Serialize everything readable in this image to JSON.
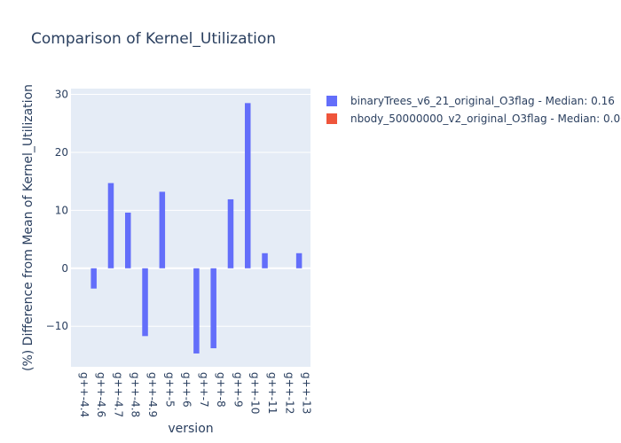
{
  "chart_data": {
    "type": "bar",
    "title": "Comparison of Kernel_Utilization",
    "xlabel": "version",
    "ylabel": "(%) Difference from Mean of Kernel_Utilization",
    "categories": [
      "g++-4.4",
      "g++-4.6",
      "g++-4.7",
      "g++-4.8",
      "g++-4.9",
      "g++-5",
      "g++-6",
      "g++-7",
      "g++-8",
      "g++-9",
      "g++-10",
      "g++-11",
      "g++-12",
      "g++-13"
    ],
    "ylim": [
      -17,
      31
    ],
    "yticks": [
      -10,
      0,
      10,
      20,
      30
    ],
    "grid": true,
    "legend_position": "top-right outside",
    "series": [
      {
        "name": "binaryTrees_v6_21_original_O3flag - Median: 0.16",
        "color": "#636efa",
        "values": [
          0,
          -3.5,
          14.7,
          9.6,
          -11.7,
          13.2,
          0,
          -14.7,
          -13.8,
          11.9,
          28.5,
          2.6,
          0,
          2.6
        ]
      },
      {
        "name": "nbody_50000000_v2_original_O3flag - Median: 0.00",
        "color": "#ef553b",
        "values": [
          0,
          0,
          0,
          0,
          0,
          0,
          0,
          0,
          0,
          0,
          0,
          0,
          0,
          0
        ]
      }
    ]
  }
}
